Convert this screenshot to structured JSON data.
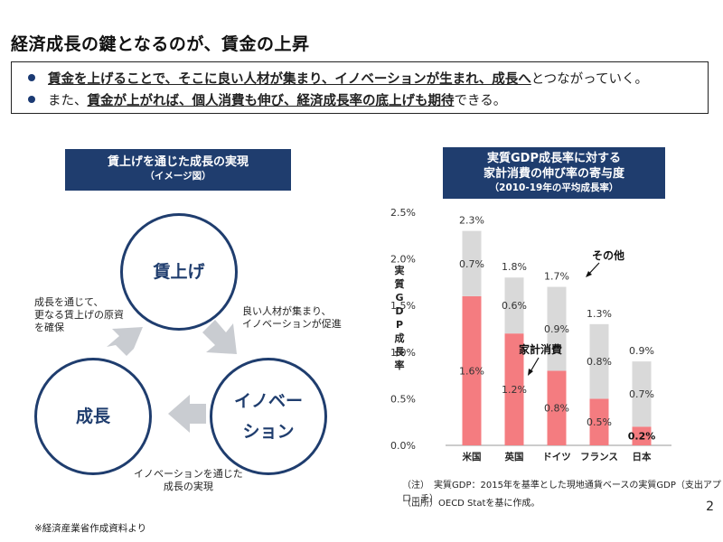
{
  "page": {
    "title": "経済成長の鍵となるのが、賃金の上昇",
    "page_number": "2",
    "source_note": "※経済産業省作成資料より"
  },
  "bullets": [
    {
      "segments": [
        {
          "text": "賃金を上げることで、そこに良い人材が集まり、イノベーションが生まれ、成長へ",
          "underline": true
        },
        {
          "text": "とつながっていく。",
          "underline": false
        }
      ]
    },
    {
      "segments": [
        {
          "text": "また、",
          "underline": false
        },
        {
          "text": "賃金が上がれば、個人消費も伸び、経済成長率の底上げも期待",
          "underline": true
        },
        {
          "text": "できる。",
          "underline": false
        }
      ]
    }
  ],
  "cycle": {
    "banner_line1": "賃上げを通じた成長の実現",
    "banner_line2": "（イメージ図）",
    "nodes": {
      "top": "賃上げ",
      "right_line1": "イノベー",
      "right_line2": "ション",
      "left": "成長"
    },
    "notes": {
      "top_right_line1": "良い人材が集まり、",
      "top_right_line2": "イノベーションが促進",
      "bottom_line1": "イノベーションを通じた",
      "bottom_line2": "成長の実現",
      "left_line1": "成長を通じて、",
      "left_line2": "更なる賃上げの原資",
      "left_line3": "を確保"
    },
    "arrow_color": "#c9ccd1"
  },
  "chart_panel": {
    "banner_line1": "実質GDP成長率に対する",
    "banner_line2": "家計消費の伸び率の寄与度",
    "banner_line3": "（2010-19年の平均成長率）",
    "footnote1": "（注）　実質GDP：2015年を基準とした現地通貨ベースの実質GDP（支出アプローチ）",
    "footnote2": "（出所）OECD Statを基に作成。"
  },
  "chart_data": {
    "type": "bar",
    "stacked": true,
    "categories": [
      "米国",
      "英国",
      "ドイツ",
      "フランス",
      "日本"
    ],
    "series": [
      {
        "name": "家計消費",
        "values": [
          1.6,
          1.2,
          0.8,
          0.5,
          0.2
        ],
        "labels": [
          "1.6%",
          "1.2%",
          "0.8%",
          "0.5%",
          "0.2%"
        ],
        "color": "#f47c80"
      },
      {
        "name": "その他",
        "values": [
          0.7,
          0.6,
          0.9,
          0.8,
          0.7
        ],
        "labels": [
          "0.7%",
          "0.6%",
          "0.9%",
          "0.8%",
          "0.7%"
        ],
        "color": "#d9d9d9"
      }
    ],
    "totals": [
      2.3,
      1.8,
      1.7,
      1.3,
      0.9
    ],
    "total_labels": [
      "2.3%",
      "1.8%",
      "1.7%",
      "1.3%",
      "0.9%"
    ],
    "ylabel": "実質GDP成長率",
    "ylim": [
      0,
      2.5
    ],
    "yticks": [
      0,
      0.5,
      1.0,
      1.5,
      2.0,
      2.5
    ],
    "ytick_labels": [
      "0.0%",
      "0.5%",
      "1.0%",
      "1.5%",
      "2.0%",
      "2.5%"
    ],
    "grid": false,
    "annotations": [
      "その他",
      "家計消費"
    ]
  }
}
